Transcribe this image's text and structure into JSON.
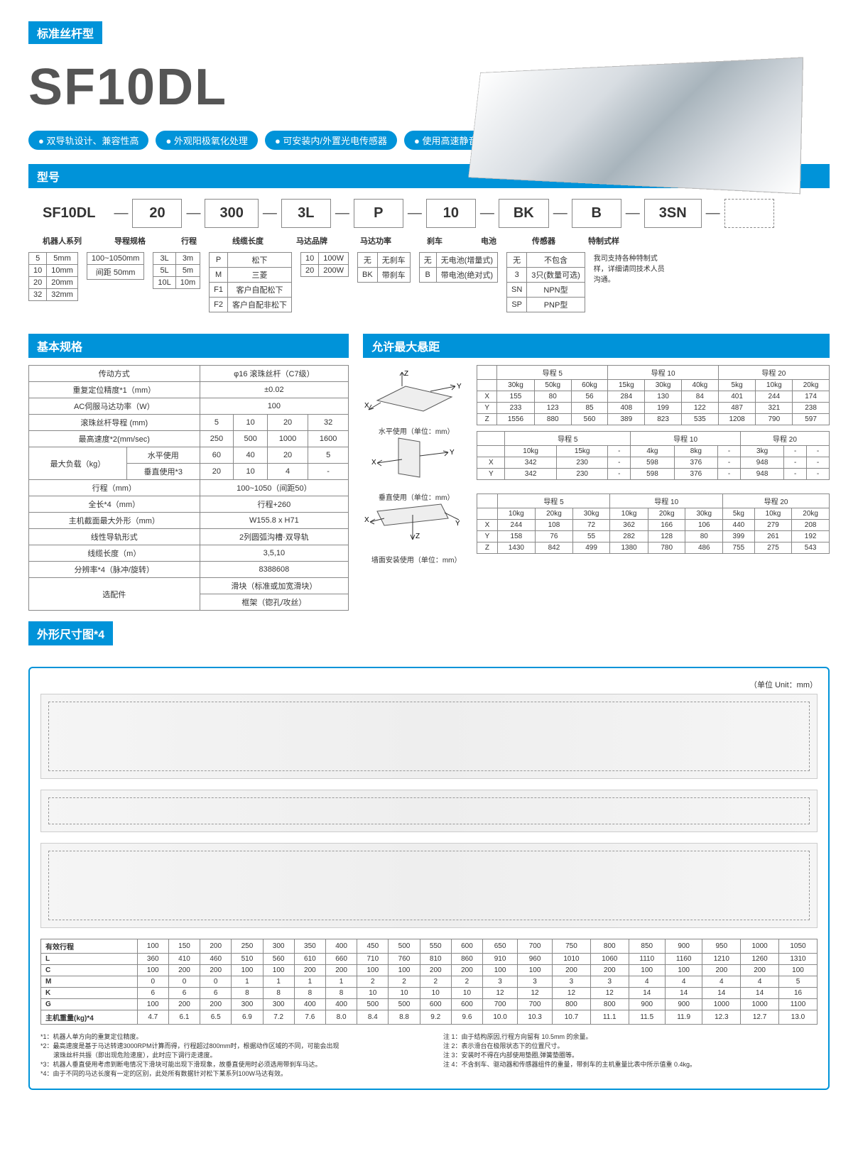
{
  "header": {
    "category": "标准丝杆型",
    "model": "SF10DL"
  },
  "features": [
    "双导轨设计、兼容性高",
    "外观阳极氧化处理",
    "可安装内/外置光电传感器",
    "使用高速静音化滚珠丝杆"
  ],
  "sections": {
    "model_number": "型号",
    "basic_spec": "基本规格",
    "max_overhang": "允许最大悬距",
    "dimensions": "外形尺寸图*4"
  },
  "config": {
    "series_label": "机器人系列",
    "boxes": [
      "SF10DL",
      "20",
      "300",
      "3L",
      "P",
      "10",
      "BK",
      "B",
      "3SN",
      ""
    ],
    "labels": [
      "机器人系列",
      "导程规格",
      "行程",
      "线缆长度",
      "马达品牌",
      "马达功率",
      "刹车",
      "电池",
      "传感器",
      "特制式样"
    ],
    "lead_spec": [
      [
        "5",
        "5mm"
      ],
      [
        "10",
        "10mm"
      ],
      [
        "20",
        "20mm"
      ],
      [
        "32",
        "32mm"
      ]
    ],
    "stroke": [
      [
        "100~1050mm"
      ],
      [
        "间距 50mm"
      ]
    ],
    "cable": [
      [
        "3L",
        "3m"
      ],
      [
        "5L",
        "5m"
      ],
      [
        "10L",
        "10m"
      ]
    ],
    "motor_brand": [
      [
        "P",
        "松下"
      ],
      [
        "M",
        "三菱"
      ],
      [
        "F1",
        "客户自配松下"
      ],
      [
        "F2",
        "客户自配非松下"
      ]
    ],
    "motor_power": [
      [
        "10",
        "100W"
      ],
      [
        "20",
        "200W"
      ]
    ],
    "brake": [
      [
        "无",
        "无刹车"
      ],
      [
        "BK",
        "带刹车"
      ]
    ],
    "battery": [
      [
        "无",
        "无电池(增量式)"
      ],
      [
        "B",
        "带电池(绝对式)"
      ]
    ],
    "sensor": [
      [
        "无",
        "不包含"
      ],
      [
        "3",
        "3只(数量可选)"
      ],
      [
        "SN",
        "NPN型"
      ],
      [
        "SP",
        "PNP型"
      ]
    ],
    "custom_note": "我司支持各种特制式样，详细请同技术人员沟通。"
  },
  "basic_spec": {
    "rows": [
      {
        "label": "传动方式",
        "values": [
          "φ16 滚珠丝杆（C7级）"
        ],
        "span": 4
      },
      {
        "label": "重复定位精度*1（mm）",
        "values": [
          "±0.02"
        ],
        "span": 4
      },
      {
        "label": "AC伺服马达功率（W）",
        "values": [
          "100"
        ],
        "span": 4
      },
      {
        "label": "滚珠丝杆导程 (mm)",
        "values": [
          "5",
          "10",
          "20",
          "32"
        ]
      },
      {
        "label": "最高速度*2(mm/sec)",
        "values": [
          "250",
          "500",
          "1000",
          "1600"
        ]
      }
    ],
    "load_label": "最大负载（kg）",
    "load_h": {
      "sub": "水平使用",
      "values": [
        "60",
        "40",
        "20",
        "5"
      ]
    },
    "load_v": {
      "sub": "垂直使用*3",
      "values": [
        "20",
        "10",
        "4",
        "-"
      ]
    },
    "rows2": [
      {
        "label": "行程（mm）",
        "values": [
          "100~1050（间距50）"
        ],
        "span": 4
      },
      {
        "label": "全长*4（mm）",
        "values": [
          "行程+260"
        ],
        "span": 4
      },
      {
        "label": "主机截面最大外形（mm）",
        "values": [
          "W155.8 x H71"
        ],
        "span": 4
      },
      {
        "label": "线性导轨形式",
        "values": [
          "2列圆弧沟槽·双导轨"
        ],
        "span": 4
      },
      {
        "label": "线缆长度（m）",
        "values": [
          "3,5,10"
        ],
        "span": 4
      },
      {
        "label": "分辨率*4（脉冲/旋转）",
        "values": [
          "8388608"
        ],
        "span": 4
      }
    ],
    "options_label": "选配件",
    "options": [
      "滑块（标准或加宽滑块）",
      "框架（锪孔/攻丝）"
    ]
  },
  "overhang": {
    "horizontal": {
      "caption": "水平使用（单位：mm）",
      "headers": [
        "导程 5",
        "导程 10",
        "导程 20"
      ],
      "subheaders": [
        "30kg",
        "50kg",
        "60kg",
        "15kg",
        "30kg",
        "40kg",
        "5kg",
        "10kg",
        "20kg"
      ],
      "rows": [
        [
          "X",
          "155",
          "80",
          "56",
          "284",
          "130",
          "84",
          "401",
          "244",
          "174"
        ],
        [
          "Y",
          "233",
          "123",
          "85",
          "408",
          "199",
          "122",
          "487",
          "321",
          "238"
        ],
        [
          "Z",
          "1556",
          "880",
          "560",
          "389",
          "823",
          "535",
          "1208",
          "790",
          "597"
        ]
      ]
    },
    "vertical": {
      "caption": "垂直使用（单位：mm）",
      "headers": [
        "导程 5",
        "导程 10",
        "导程 20"
      ],
      "subheaders": [
        "10kg",
        "15kg",
        "-",
        "4kg",
        "8kg",
        "-",
        "3kg",
        "-",
        "-"
      ],
      "rows": [
        [
          "X",
          "342",
          "230",
          "-",
          "598",
          "376",
          "-",
          "948",
          "-",
          "-"
        ],
        [
          "Y",
          "342",
          "230",
          "-",
          "598",
          "376",
          "-",
          "948",
          "-",
          "-"
        ]
      ]
    },
    "wall": {
      "caption": "墙面安装使用（单位：mm）",
      "headers": [
        "导程 5",
        "导程 10",
        "导程 20"
      ],
      "subheaders": [
        "10kg",
        "20kg",
        "30kg",
        "10kg",
        "20kg",
        "30kg",
        "5kg",
        "10kg",
        "20kg"
      ],
      "rows": [
        [
          "X",
          "244",
          "108",
          "72",
          "362",
          "166",
          "106",
          "440",
          "279",
          "208"
        ],
        [
          "Y",
          "158",
          "76",
          "55",
          "282",
          "128",
          "80",
          "399",
          "261",
          "192"
        ],
        [
          "Z",
          "1430",
          "842",
          "499",
          "1380",
          "780",
          "486",
          "755",
          "275",
          "543"
        ]
      ]
    }
  },
  "dimensions": {
    "unit_label": "（单位 Unit：mm）",
    "strokes": [
      "100",
      "150",
      "200",
      "250",
      "300",
      "350",
      "400",
      "450",
      "500",
      "550",
      "600",
      "650",
      "700",
      "750",
      "800",
      "850",
      "900",
      "950",
      "1000",
      "1050"
    ],
    "rows": [
      {
        "label": "有效行程",
        "use_strokes": true
      },
      {
        "label": "L",
        "values": [
          "360",
          "410",
          "460",
          "510",
          "560",
          "610",
          "660",
          "710",
          "760",
          "810",
          "860",
          "910",
          "960",
          "1010",
          "1060",
          "1110",
          "1160",
          "1210",
          "1260",
          "1310"
        ]
      },
      {
        "label": "C",
        "values": [
          "100",
          "200",
          "200",
          "100",
          "100",
          "200",
          "200",
          "100",
          "100",
          "200",
          "200",
          "100",
          "100",
          "200",
          "200",
          "100",
          "100",
          "200",
          "200",
          "100"
        ]
      },
      {
        "label": "M",
        "values": [
          "0",
          "0",
          "0",
          "1",
          "1",
          "1",
          "1",
          "2",
          "2",
          "2",
          "2",
          "3",
          "3",
          "3",
          "3",
          "4",
          "4",
          "4",
          "4",
          "5"
        ]
      },
      {
        "label": "K",
        "values": [
          "6",
          "6",
          "6",
          "8",
          "8",
          "8",
          "8",
          "10",
          "10",
          "10",
          "10",
          "12",
          "12",
          "12",
          "12",
          "14",
          "14",
          "14",
          "14",
          "16"
        ]
      },
      {
        "label": "G",
        "values": [
          "100",
          "200",
          "200",
          "300",
          "300",
          "400",
          "400",
          "500",
          "500",
          "600",
          "600",
          "700",
          "700",
          "800",
          "800",
          "900",
          "900",
          "1000",
          "1000",
          "1100"
        ]
      },
      {
        "label": "主机重量(kg)*4",
        "values": [
          "4.7",
          "6.1",
          "6.5",
          "6.9",
          "7.2",
          "7.6",
          "8.0",
          "8.4",
          "8.8",
          "9.2",
          "9.6",
          "10.0",
          "10.3",
          "10.7",
          "11.1",
          "11.5",
          "11.9",
          "12.3",
          "12.7",
          "13.0"
        ]
      }
    ]
  },
  "footnotes": {
    "left": [
      "*1：机器人单方向的重复定位精度。",
      "*2：最高速度是基于马达转速3000RPM计算而得，行程超过800mm时，根据动作区域的不同，可能会出现",
      "　　滚珠丝杆共振（即出现危险速度），此时应下调行走速度。",
      "*3：机器人垂直使用考虑到断电情况下滑块可能出现下滑现象，故垂直使用时必须选用带刹车马达。",
      "*4：由于不同的马达长度有一定的区别，此处所有数据针对松下某系列100W马达有效。"
    ],
    "right": [
      "注 1：由于结构原因,行程方向留有 10.5mm 的余量。",
      "注 2：表示滑台在极限状态下的位置尺寸。",
      "注 3：安装时不得在内部使用垫圈,弹簧垫圈等。",
      "注 4：不含刹车、驱动器和传感器组件的重量，带刹车的主机重量比表中所示值重 0.4kg。"
    ]
  },
  "colors": {
    "primary": "#0093d9",
    "border": "#888888",
    "text": "#333333"
  }
}
